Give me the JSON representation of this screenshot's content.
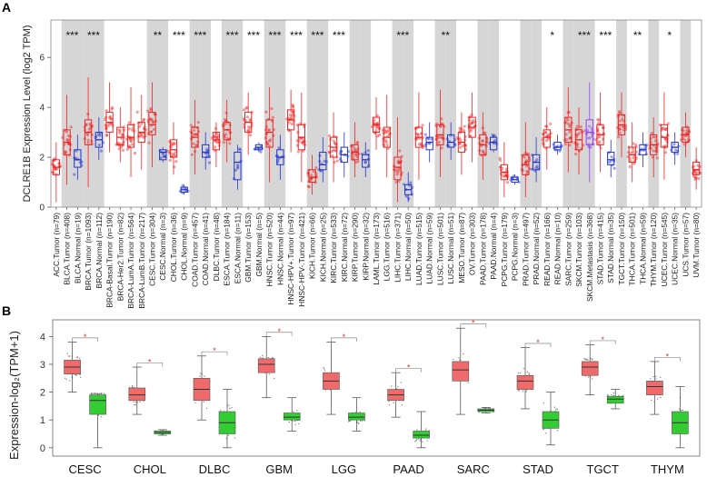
{
  "panel_a_label": "A",
  "panel_b_label": "B",
  "chart_data": [
    {
      "type": "box",
      "panel": "A",
      "ylabel": "DCLRE1B Expression Level (log2 TPM)",
      "ylim": [
        0,
        7.5
      ],
      "yticks": [
        0,
        2,
        4,
        6
      ],
      "grid": false,
      "series": [
        {
          "name": "Tumor",
          "color": "#ee2222"
        },
        {
          "name": "Normal",
          "color": "#2233cc"
        },
        {
          "name": "Metastasis",
          "color": "#9944ee"
        }
      ],
      "categories": [
        {
          "label": "ACC.Tumor (n=79)",
          "kind": "Tumor",
          "median": 1.6,
          "q1": 1.3,
          "q3": 1.9,
          "min": 0.2,
          "max": 2.6,
          "shade": false,
          "sig": ""
        },
        {
          "label": "BLCA.Tumor (n=408)",
          "kind": "Tumor",
          "median": 2.6,
          "q1": 2.1,
          "q3": 3.1,
          "min": 0.9,
          "max": 4.5,
          "shade": true,
          "sig": "***"
        },
        {
          "label": "BLCA.Normal (n=19)",
          "kind": "Normal",
          "median": 1.9,
          "q1": 1.6,
          "q3": 2.3,
          "min": 1.1,
          "max": 2.9,
          "shade": true,
          "sig": ""
        },
        {
          "label": "BRCA.Tumor (n=1093)",
          "kind": "Tumor",
          "median": 3.0,
          "q1": 2.5,
          "q3": 3.5,
          "min": 0.8,
          "max": 5.2,
          "shade": true,
          "sig": "***"
        },
        {
          "label": "BRCA.Normal (n=112)",
          "kind": "Normal",
          "median": 2.7,
          "q1": 2.4,
          "q3": 3.0,
          "min": 1.9,
          "max": 3.6,
          "shade": true,
          "sig": ""
        },
        {
          "label": "BRCA-Basal.Tumor (n=190)",
          "kind": "Tumor",
          "median": 3.4,
          "q1": 3.0,
          "q3": 3.8,
          "min": 2.2,
          "max": 5.0,
          "shade": false,
          "sig": ""
        },
        {
          "label": "BRCA-Her2.Tumor (n=82)",
          "kind": "Tumor",
          "median": 2.8,
          "q1": 2.5,
          "q3": 3.2,
          "min": 1.8,
          "max": 4.0,
          "shade": false,
          "sig": ""
        },
        {
          "label": "BRCA-LumA.Tumor (n=564)",
          "kind": "Tumor",
          "median": 2.8,
          "q1": 2.4,
          "q3": 3.3,
          "min": 1.2,
          "max": 4.8,
          "shade": false,
          "sig": ""
        },
        {
          "label": "BRCA-LumB.Tumor (n=217)",
          "kind": "Tumor",
          "median": 3.0,
          "q1": 2.6,
          "q3": 3.4,
          "min": 1.5,
          "max": 4.5,
          "shade": false,
          "sig": ""
        },
        {
          "label": "CESC.Tumor (n=304)",
          "kind": "Tumor",
          "median": 3.3,
          "q1": 2.9,
          "q3": 3.8,
          "min": 1.6,
          "max": 5.0,
          "shade": true,
          "sig": "**"
        },
        {
          "label": "CESC.Normal (n=3)",
          "kind": "Normal",
          "median": 2.2,
          "q1": 1.9,
          "q3": 2.3,
          "min": 1.8,
          "max": 2.4,
          "shade": true,
          "sig": ""
        },
        {
          "label": "CHOL.Tumor (n=36)",
          "kind": "Tumor",
          "median": 2.3,
          "q1": 2.0,
          "q3": 2.7,
          "min": 1.3,
          "max": 3.4,
          "shade": false,
          "sig": "***"
        },
        {
          "label": "CHOL.Normal (n=9)",
          "kind": "Normal",
          "median": 0.7,
          "q1": 0.6,
          "q3": 0.8,
          "min": 0.5,
          "max": 0.9,
          "shade": false,
          "sig": ""
        },
        {
          "label": "COAD.Tumor (n=457)",
          "kind": "Tumor",
          "median": 2.8,
          "q1": 2.4,
          "q3": 3.2,
          "min": 1.3,
          "max": 4.3,
          "shade": true,
          "sig": "***"
        },
        {
          "label": "COAD.Normal (n=41)",
          "kind": "Normal",
          "median": 2.2,
          "q1": 2.0,
          "q3": 2.5,
          "min": 1.5,
          "max": 3.0,
          "shade": true,
          "sig": ""
        },
        {
          "label": "DLBC.Tumor (n=48)",
          "kind": "Tumor",
          "median": 2.7,
          "q1": 2.3,
          "q3": 3.0,
          "min": 1.6,
          "max": 3.4,
          "shade": false,
          "sig": ""
        },
        {
          "label": "ESCA.Tumor (n=184)",
          "kind": "Tumor",
          "median": 3.1,
          "q1": 2.7,
          "q3": 3.4,
          "min": 1.8,
          "max": 4.3,
          "shade": true,
          "sig": "***"
        },
        {
          "label": "ESCA.Normal (n=11)",
          "kind": "Normal",
          "median": 1.8,
          "q1": 1.1,
          "q3": 2.2,
          "min": 0.7,
          "max": 2.5,
          "shade": true,
          "sig": ""
        },
        {
          "label": "GBM.Tumor (n=153)",
          "kind": "Tumor",
          "median": 3.4,
          "q1": 3.0,
          "q3": 3.8,
          "min": 2.1,
          "max": 4.6,
          "shade": false,
          "sig": "***"
        },
        {
          "label": "GBM.Normal (n=5)",
          "kind": "Normal",
          "median": 2.4,
          "q1": 2.3,
          "q3": 2.5,
          "min": 2.2,
          "max": 2.6,
          "shade": false,
          "sig": ""
        },
        {
          "label": "HNSC.Tumor (n=520)",
          "kind": "Tumor",
          "median": 3.0,
          "q1": 2.4,
          "q3": 3.5,
          "min": 1.0,
          "max": 4.8,
          "shade": true,
          "sig": "***"
        },
        {
          "label": "HNSC.Normal (n=44)",
          "kind": "Normal",
          "median": 2.0,
          "q1": 1.7,
          "q3": 2.3,
          "min": 1.1,
          "max": 2.9,
          "shade": true,
          "sig": ""
        },
        {
          "label": "HNSC-HPV+.Tumor (n=97)",
          "kind": "Tumor",
          "median": 3.5,
          "q1": 3.1,
          "q3": 3.9,
          "min": 2.2,
          "max": 4.7,
          "shade": false,
          "sig": "***"
        },
        {
          "label": "HNSC-HPV-.Tumor (n=421)",
          "kind": "Tumor",
          "median": 2.8,
          "q1": 2.3,
          "q3": 3.3,
          "min": 1.0,
          "max": 4.6,
          "shade": false,
          "sig": ""
        },
        {
          "label": "KICH.Tumor (n=66)",
          "kind": "Tumor",
          "median": 1.2,
          "q1": 1.0,
          "q3": 1.5,
          "min": 0.5,
          "max": 2.1,
          "shade": true,
          "sig": "***"
        },
        {
          "label": "KICH.Normal (n=25)",
          "kind": "Normal",
          "median": 1.7,
          "q1": 1.5,
          "q3": 2.2,
          "min": 1.0,
          "max": 2.8,
          "shade": true,
          "sig": ""
        },
        {
          "label": "KIRC.Tumor (n=533)",
          "kind": "Tumor",
          "median": 2.4,
          "q1": 2.0,
          "q3": 2.8,
          "min": 1.0,
          "max": 3.8,
          "shade": false,
          "sig": "***"
        },
        {
          "label": "KIRC.Normal (n=72)",
          "kind": "Normal",
          "median": 2.1,
          "q1": 1.8,
          "q3": 2.4,
          "min": 1.2,
          "max": 3.0,
          "shade": false,
          "sig": ""
        },
        {
          "label": "KIRP.Tumor (n=290)",
          "kind": "Tumor",
          "median": 2.2,
          "q1": 1.9,
          "q3": 2.5,
          "min": 1.2,
          "max": 3.4,
          "shade": true,
          "sig": ""
        },
        {
          "label": "KIRP.Normal (n=32)",
          "kind": "Normal",
          "median": 1.9,
          "q1": 1.6,
          "q3": 2.1,
          "min": 1.2,
          "max": 2.6,
          "shade": true,
          "sig": ""
        },
        {
          "label": "LAML.Tumor (n=173)",
          "kind": "Tumor",
          "median": 3.3,
          "q1": 3.0,
          "q3": 3.6,
          "min": 2.3,
          "max": 4.4,
          "shade": false,
          "sig": ""
        },
        {
          "label": "LGG.Tumor (n=516)",
          "kind": "Tumor",
          "median": 2.8,
          "q1": 2.4,
          "q3": 3.2,
          "min": 1.2,
          "max": 4.5,
          "shade": false,
          "sig": ""
        },
        {
          "label": "LIHC.Tumor (n=371)",
          "kind": "Tumor",
          "median": 1.6,
          "q1": 1.1,
          "q3": 2.0,
          "min": 0.2,
          "max": 3.6,
          "shade": true,
          "sig": "***"
        },
        {
          "label": "LIHC.Normal (n=50)",
          "kind": "Normal",
          "median": 0.7,
          "q1": 0.5,
          "q3": 0.9,
          "min": 0.2,
          "max": 1.4,
          "shade": true,
          "sig": ""
        },
        {
          "label": "LUAD.Tumor (n=515)",
          "kind": "Tumor",
          "median": 2.8,
          "q1": 2.4,
          "q3": 3.2,
          "min": 1.1,
          "max": 4.6,
          "shade": false,
          "sig": ""
        },
        {
          "label": "LUAD.Normal (n=59)",
          "kind": "Normal",
          "median": 2.6,
          "q1": 2.3,
          "q3": 2.8,
          "min": 1.8,
          "max": 3.4,
          "shade": false,
          "sig": ""
        },
        {
          "label": "LUSC.Tumor (n=501)",
          "kind": "Tumor",
          "median": 2.9,
          "q1": 2.5,
          "q3": 3.3,
          "min": 1.2,
          "max": 4.7,
          "shade": true,
          "sig": "**"
        },
        {
          "label": "LUSC.Normal (n=51)",
          "kind": "Normal",
          "median": 2.6,
          "q1": 2.4,
          "q3": 2.9,
          "min": 1.9,
          "max": 3.4,
          "shade": true,
          "sig": ""
        },
        {
          "label": "MESO.Tumor (n=87)",
          "kind": "Tumor",
          "median": 2.6,
          "q1": 2.2,
          "q3": 3.0,
          "min": 1.3,
          "max": 3.8,
          "shade": false,
          "sig": ""
        },
        {
          "label": "OV.Tumor (n=303)",
          "kind": "Tumor",
          "median": 3.2,
          "q1": 2.8,
          "q3": 3.6,
          "min": 1.8,
          "max": 4.6,
          "shade": false,
          "sig": ""
        },
        {
          "label": "PAAD.Tumor (n=178)",
          "kind": "Tumor",
          "median": 2.5,
          "q1": 2.1,
          "q3": 2.9,
          "min": 1.1,
          "max": 3.8,
          "shade": true,
          "sig": ""
        },
        {
          "label": "PAAD.Normal (n=4)",
          "kind": "Normal",
          "median": 2.6,
          "q1": 2.3,
          "q3": 2.8,
          "min": 2.2,
          "max": 2.9,
          "shade": true,
          "sig": ""
        },
        {
          "label": "PCPG.Tumor (n=179)",
          "kind": "Tumor",
          "median": 1.4,
          "q1": 1.1,
          "q3": 1.7,
          "min": 0.4,
          "max": 2.6,
          "shade": false,
          "sig": ""
        },
        {
          "label": "PCPG.Normal (n=3)",
          "kind": "Normal",
          "median": 1.1,
          "q1": 1.0,
          "q3": 1.2,
          "min": 0.9,
          "max": 1.3,
          "shade": false,
          "sig": ""
        },
        {
          "label": "PRAD.Tumor (n=497)",
          "kind": "Tumor",
          "median": 1.7,
          "q1": 1.3,
          "q3": 2.1,
          "min": 0.4,
          "max": 3.4,
          "shade": true,
          "sig": ""
        },
        {
          "label": "PRAD.Normal (n=52)",
          "kind": "Normal",
          "median": 1.8,
          "q1": 1.5,
          "q3": 2.1,
          "min": 1.0,
          "max": 2.8,
          "shade": true,
          "sig": ""
        },
        {
          "label": "READ.Tumor (n=166)",
          "kind": "Tumor",
          "median": 2.8,
          "q1": 2.4,
          "q3": 3.1,
          "min": 1.5,
          "max": 4.0,
          "shade": false,
          "sig": "*"
        },
        {
          "label": "READ.Normal (n=10)",
          "kind": "Normal",
          "median": 2.4,
          "q1": 2.3,
          "q3": 2.6,
          "min": 2.1,
          "max": 2.9,
          "shade": false,
          "sig": ""
        },
        {
          "label": "SARC.Tumor (n=259)",
          "kind": "Tumor",
          "median": 3.1,
          "q1": 2.6,
          "q3": 3.6,
          "min": 1.4,
          "max": 4.8,
          "shade": true,
          "sig": ""
        },
        {
          "label": "SKCM.Tumor (n=103)",
          "kind": "Tumor",
          "median": 2.7,
          "q1": 2.3,
          "q3": 3.1,
          "min": 1.3,
          "max": 4.0,
          "shade": true,
          "sig": "***"
        },
        {
          "label": "SKCM.Metastasis (n=368)",
          "kind": "Metastasis",
          "median": 3.0,
          "q1": 2.5,
          "q3": 3.5,
          "min": 1.0,
          "max": 5.0,
          "shade": true,
          "sig": ""
        },
        {
          "label": "STAD.Tumor (n=415)",
          "kind": "Tumor",
          "median": 2.9,
          "q1": 2.5,
          "q3": 3.3,
          "min": 1.4,
          "max": 4.6,
          "shade": false,
          "sig": "***"
        },
        {
          "label": "STAD.Normal (n=35)",
          "kind": "Normal",
          "median": 1.9,
          "q1": 1.7,
          "q3": 2.2,
          "min": 1.2,
          "max": 2.7,
          "shade": false,
          "sig": ""
        },
        {
          "label": "TGCT.Tumor (n=150)",
          "kind": "Tumor",
          "median": 3.3,
          "q1": 2.9,
          "q3": 3.7,
          "min": 2.0,
          "max": 4.6,
          "shade": true,
          "sig": ""
        },
        {
          "label": "THCA.Tumor (n=501)",
          "kind": "Tumor",
          "median": 2.1,
          "q1": 1.8,
          "q3": 2.4,
          "min": 1.0,
          "max": 3.4,
          "shade": false,
          "sig": "**"
        },
        {
          "label": "THCA.Normal (n=59)",
          "kind": "Normal",
          "median": 2.3,
          "q1": 2.1,
          "q3": 2.5,
          "min": 1.6,
          "max": 3.0,
          "shade": false,
          "sig": ""
        },
        {
          "label": "THYM.Tumor (n=120)",
          "kind": "Tumor",
          "median": 2.5,
          "q1": 2.1,
          "q3": 2.9,
          "min": 1.2,
          "max": 3.6,
          "shade": true,
          "sig": ""
        },
        {
          "label": "UCEC.Tumor (n=545)",
          "kind": "Tumor",
          "median": 2.8,
          "q1": 2.4,
          "q3": 3.3,
          "min": 1.1,
          "max": 4.6,
          "shade": false,
          "sig": "*"
        },
        {
          "label": "UCEC.Normal (n=35)",
          "kind": "Normal",
          "median": 2.4,
          "q1": 2.2,
          "q3": 2.6,
          "min": 1.7,
          "max": 3.0,
          "shade": false,
          "sig": ""
        },
        {
          "label": "UCS.Tumor (n=57)",
          "kind": "Tumor",
          "median": 2.9,
          "q1": 2.6,
          "q3": 3.2,
          "min": 2.0,
          "max": 3.8,
          "shade": true,
          "sig": ""
        },
        {
          "label": "UVM.Tumor (n=80)",
          "kind": "Tumor",
          "median": 1.5,
          "q1": 1.3,
          "q3": 1.8,
          "min": 0.7,
          "max": 2.4,
          "shade": false,
          "sig": ""
        }
      ]
    },
    {
      "type": "box",
      "panel": "B",
      "ylabel": "Expression-log₂(TPM+1)",
      "ylim": [
        -0.3,
        4.6
      ],
      "yticks": [
        0,
        1,
        2,
        3,
        4
      ],
      "categories": [
        "CESC",
        "CHOL",
        "DLBC",
        "GBM",
        "LGG",
        "PAAD",
        "SARC",
        "STAD",
        "TGCT",
        "THYM"
      ],
      "series": [
        {
          "name": "Tumor",
          "color": "#ef6b6b",
          "boxes": [
            {
              "median": 2.9,
              "q1": 2.65,
              "q3": 3.15,
              "min": 2.0,
              "max": 3.8
            },
            {
              "median": 1.9,
              "q1": 1.7,
              "q3": 2.15,
              "min": 1.2,
              "max": 2.9
            },
            {
              "median": 2.1,
              "q1": 1.7,
              "q3": 2.5,
              "min": 1.0,
              "max": 3.3
            },
            {
              "median": 3.0,
              "q1": 2.7,
              "q3": 3.2,
              "min": 1.8,
              "max": 4.0
            },
            {
              "median": 2.4,
              "q1": 2.1,
              "q3": 2.7,
              "min": 1.2,
              "max": 3.8
            },
            {
              "median": 1.9,
              "q1": 1.7,
              "q3": 2.1,
              "min": 1.1,
              "max": 2.7
            },
            {
              "median": 2.8,
              "q1": 2.4,
              "q3": 3.1,
              "min": 1.2,
              "max": 4.3
            },
            {
              "median": 2.4,
              "q1": 2.1,
              "q3": 2.6,
              "min": 1.4,
              "max": 3.6
            },
            {
              "median": 2.9,
              "q1": 2.6,
              "q3": 3.1,
              "min": 1.9,
              "max": 3.7
            },
            {
              "median": 2.2,
              "q1": 1.9,
              "q3": 2.4,
              "min": 1.2,
              "max": 3.1
            }
          ]
        },
        {
          "name": "Normal",
          "color": "#33cc33",
          "boxes": [
            {
              "median": 1.7,
              "q1": 1.2,
              "q3": 1.9,
              "min": 0.0,
              "max": 1.95
            },
            {
              "median": 0.55,
              "q1": 0.5,
              "q3": 0.6,
              "min": 0.45,
              "max": 0.65
            },
            {
              "median": 0.9,
              "q1": 0.5,
              "q3": 1.3,
              "min": 0.0,
              "max": 2.1
            },
            {
              "median": 1.1,
              "q1": 1.0,
              "q3": 1.25,
              "min": 0.6,
              "max": 1.8
            },
            {
              "median": 1.1,
              "q1": 1.0,
              "q3": 1.25,
              "min": 0.6,
              "max": 1.8
            },
            {
              "median": 0.45,
              "q1": 0.35,
              "q3": 0.6,
              "min": 0.0,
              "max": 1.3
            },
            {
              "median": 1.35,
              "q1": 1.3,
              "q3": 1.4,
              "min": 1.25,
              "max": 1.45
            },
            {
              "median": 1.0,
              "q1": 0.7,
              "q3": 1.3,
              "min": 0.1,
              "max": 2.0
            },
            {
              "median": 1.75,
              "q1": 1.6,
              "q3": 1.85,
              "min": 1.4,
              "max": 2.1
            },
            {
              "median": 0.9,
              "q1": 0.5,
              "q3": 1.3,
              "min": 0.0,
              "max": 2.2
            }
          ]
        }
      ],
      "significance": [
        "*",
        "*",
        "*",
        "*",
        "*",
        "*",
        "*",
        "*",
        "*",
        "*"
      ]
    }
  ]
}
